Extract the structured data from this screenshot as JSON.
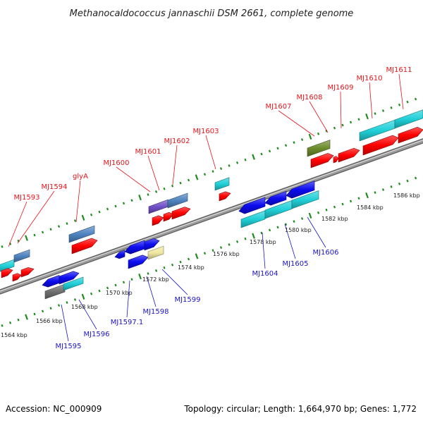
{
  "title": "Methanocaldococcus jannaschii DSM 2661, complete genome",
  "footer": {
    "accession": "Accession: NC_000909",
    "topology": "Topology: circular; Length: 1,664,970 bp; Genes: 1,772"
  },
  "colors": {
    "label_top": "#e8141a",
    "label_bottom": "#1a14c8",
    "backbone": "#9a9a9a",
    "ticks": "#1e8c1e",
    "gene_red": "#ff0000",
    "gene_blue": "#0c0cf0",
    "gene_cyan": "#20d0d8",
    "gene_steelblue": "#4f84c0",
    "gene_purple": "#7050c8",
    "gene_olive": "#6c8c2c",
    "gene_khaki": "#f0e8a0",
    "gene_gray": "#707070"
  },
  "ruler_labels": [
    "1564 kbp",
    "1566 kbp",
    "1568 kbp",
    "1570 kbp",
    "1572 kbp",
    "1574 kbp",
    "1576 kbp",
    "1578 kbp",
    "1580 kbp",
    "1582 kbp",
    "1584 kbp",
    "1586 kbp"
  ],
  "top_gene_labels": [
    "MJ1593",
    "MJ1594",
    "glyA",
    "MJ1600",
    "MJ1601",
    "MJ1602",
    "MJ1603",
    "MJ1607",
    "MJ1608",
    "MJ1609",
    "MJ1610",
    "MJ1611"
  ],
  "bottom_gene_labels": [
    "MJ1595",
    "MJ1596",
    "MJ1597.1",
    "MJ1598",
    "MJ1599",
    "MJ1604",
    "MJ1605",
    "MJ1606"
  ]
}
